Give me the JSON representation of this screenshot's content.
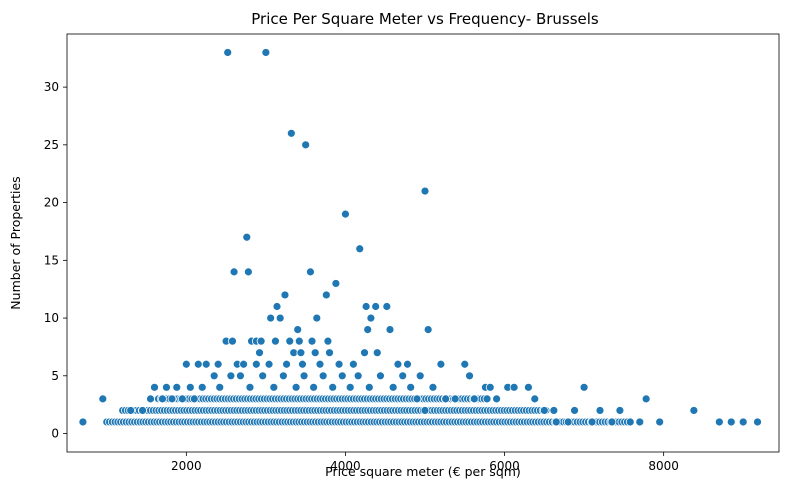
{
  "chart_data": {
    "type": "scatter",
    "title": "Price Per Square Meter vs Frequency- Brussels",
    "xlabel": "Price square meter (€ per sqm)",
    "ylabel": "Number of Properties",
    "xlim": [
      500,
      9450
    ],
    "ylim": [
      -1.6,
      34.6
    ],
    "xticks": [
      2000,
      4000,
      6000,
      8000
    ],
    "yticks": [
      0,
      5,
      10,
      15,
      20,
      25,
      30
    ],
    "grid": false,
    "legend": "none",
    "color": "#1f77b4",
    "points": [
      {
        "x": 2520,
        "y": 33
      },
      {
        "x": 3000,
        "y": 33
      },
      {
        "x": 3320,
        "y": 26
      },
      {
        "x": 3500,
        "y": 25
      },
      {
        "x": 5000,
        "y": 21
      },
      {
        "x": 4000,
        "y": 19
      },
      {
        "x": 2760,
        "y": 17
      },
      {
        "x": 4180,
        "y": 16
      },
      {
        "x": 2600,
        "y": 14
      },
      {
        "x": 2780,
        "y": 14
      },
      {
        "x": 3560,
        "y": 14
      },
      {
        "x": 3880,
        "y": 13
      },
      {
        "x": 3240,
        "y": 12
      },
      {
        "x": 3760,
        "y": 12
      },
      {
        "x": 3140,
        "y": 11
      },
      {
        "x": 4260,
        "y": 11
      },
      {
        "x": 4380,
        "y": 11
      },
      {
        "x": 4520,
        "y": 11
      },
      {
        "x": 3060,
        "y": 10
      },
      {
        "x": 3180,
        "y": 10
      },
      {
        "x": 3640,
        "y": 10
      },
      {
        "x": 4320,
        "y": 10
      },
      {
        "x": 3400,
        "y": 9
      },
      {
        "x": 4280,
        "y": 9
      },
      {
        "x": 4560,
        "y": 9
      },
      {
        "x": 5040,
        "y": 9
      },
      {
        "x": 2500,
        "y": 8
      },
      {
        "x": 2580,
        "y": 8
      },
      {
        "x": 2820,
        "y": 8
      },
      {
        "x": 2880,
        "y": 8
      },
      {
        "x": 2940,
        "y": 8
      },
      {
        "x": 3120,
        "y": 8
      },
      {
        "x": 3300,
        "y": 8
      },
      {
        "x": 3420,
        "y": 8
      },
      {
        "x": 3580,
        "y": 8
      },
      {
        "x": 3780,
        "y": 8
      },
      {
        "x": 2920,
        "y": 7
      },
      {
        "x": 3350,
        "y": 7
      },
      {
        "x": 3440,
        "y": 7
      },
      {
        "x": 3620,
        "y": 7
      },
      {
        "x": 3800,
        "y": 7
      },
      {
        "x": 4240,
        "y": 7
      },
      {
        "x": 4400,
        "y": 7
      },
      {
        "x": 2000,
        "y": 6
      },
      {
        "x": 2150,
        "y": 6
      },
      {
        "x": 2250,
        "y": 6
      },
      {
        "x": 2400,
        "y": 6
      },
      {
        "x": 2640,
        "y": 6
      },
      {
        "x": 2720,
        "y": 6
      },
      {
        "x": 2880,
        "y": 6
      },
      {
        "x": 3040,
        "y": 6
      },
      {
        "x": 3260,
        "y": 6
      },
      {
        "x": 3460,
        "y": 6
      },
      {
        "x": 3680,
        "y": 6
      },
      {
        "x": 3920,
        "y": 6
      },
      {
        "x": 4100,
        "y": 6
      },
      {
        "x": 4660,
        "y": 6
      },
      {
        "x": 4780,
        "y": 6
      },
      {
        "x": 5200,
        "y": 6
      },
      {
        "x": 5500,
        "y": 6
      },
      {
        "x": 700,
        "y": 1
      },
      {
        "x": 950,
        "y": 3
      },
      {
        "x": 1750,
        "y": 4
      },
      {
        "x": 1880,
        "y": 4
      },
      {
        "x": 1600,
        "y": 4
      },
      {
        "x": 2050,
        "y": 4
      },
      {
        "x": 2200,
        "y": 4
      },
      {
        "x": 2350,
        "y": 5
      },
      {
        "x": 2420,
        "y": 4
      },
      {
        "x": 2560,
        "y": 5
      },
      {
        "x": 2680,
        "y": 5
      },
      {
        "x": 2800,
        "y": 4
      },
      {
        "x": 2960,
        "y": 5
      },
      {
        "x": 3100,
        "y": 4
      },
      {
        "x": 3220,
        "y": 5
      },
      {
        "x": 3380,
        "y": 4
      },
      {
        "x": 3480,
        "y": 5
      },
      {
        "x": 3600,
        "y": 4
      },
      {
        "x": 3720,
        "y": 5
      },
      {
        "x": 3840,
        "y": 4
      },
      {
        "x": 3960,
        "y": 5
      },
      {
        "x": 4060,
        "y": 4
      },
      {
        "x": 4160,
        "y": 5
      },
      {
        "x": 4300,
        "y": 4
      },
      {
        "x": 4440,
        "y": 5
      },
      {
        "x": 4600,
        "y": 4
      },
      {
        "x": 4720,
        "y": 5
      },
      {
        "x": 4820,
        "y": 4
      },
      {
        "x": 4940,
        "y": 5
      },
      {
        "x": 5100,
        "y": 4
      },
      {
        "x": 5260,
        "y": 3
      },
      {
        "x": 5380,
        "y": 3
      },
      {
        "x": 5560,
        "y": 5
      },
      {
        "x": 5620,
        "y": 3
      },
      {
        "x": 5760,
        "y": 4
      },
      {
        "x": 5820,
        "y": 4
      },
      {
        "x": 5900,
        "y": 3
      },
      {
        "x": 6040,
        "y": 4
      },
      {
        "x": 6120,
        "y": 4
      },
      {
        "x": 6300,
        "y": 4
      },
      {
        "x": 6380,
        "y": 3
      },
      {
        "x": 6500,
        "y": 2
      },
      {
        "x": 6620,
        "y": 2
      },
      {
        "x": 6880,
        "y": 2
      },
      {
        "x": 7000,
        "y": 4
      },
      {
        "x": 7200,
        "y": 2
      },
      {
        "x": 7450,
        "y": 2
      },
      {
        "x": 7780,
        "y": 3
      },
      {
        "x": 8380,
        "y": 2
      },
      {
        "x": 7700,
        "y": 1
      },
      {
        "x": 7950,
        "y": 1
      },
      {
        "x": 8700,
        "y": 1
      },
      {
        "x": 8850,
        "y": 1
      },
      {
        "x": 9000,
        "y": 1
      },
      {
        "x": 9180,
        "y": 1
      },
      {
        "x": 7350,
        "y": 1
      },
      {
        "x": 7100,
        "y": 1
      },
      {
        "x": 6800,
        "y": 1
      },
      {
        "x": 6650,
        "y": 1
      },
      {
        "x": 1300,
        "y": 2
      },
      {
        "x": 1450,
        "y": 2
      },
      {
        "x": 1550,
        "y": 3
      },
      {
        "x": 1700,
        "y": 3
      },
      {
        "x": 1820,
        "y": 3
      },
      {
        "x": 1950,
        "y": 3
      },
      {
        "x": 2100,
        "y": 3
      },
      {
        "x": 4900,
        "y": 3
      },
      {
        "x": 5000,
        "y": 2
      }
    ],
    "dense_band": {
      "y_levels": [
        1,
        2,
        3
      ],
      "x_start": [
        1000,
        1200,
        1650
      ],
      "x_end": [
        7600,
        6550,
        5800
      ],
      "x_step": 35
    }
  }
}
